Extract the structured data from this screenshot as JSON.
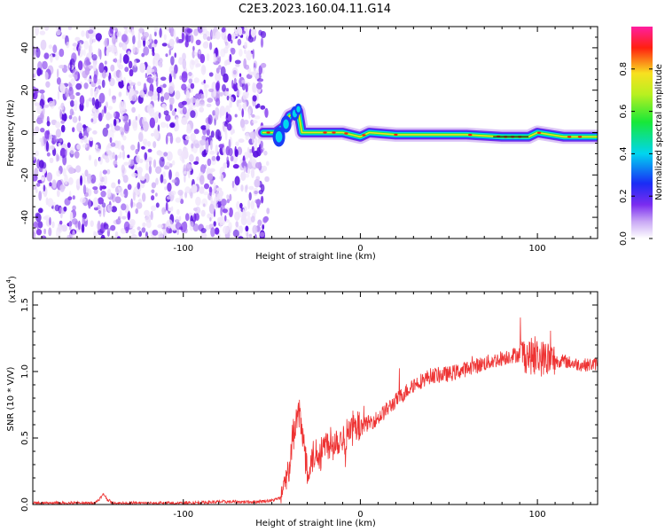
{
  "title": "C2E3.2023.160.04.11.G14",
  "colors": {
    "snr_line": "#ee3333",
    "axis": "#000000",
    "spectrogram_noise": "#7b2cf0",
    "track_core": "#ff2010"
  },
  "chart_data": [
    {
      "type": "heatmap",
      "xlabel": "Height of straight line (km)",
      "ylabel": "Frequency (Hz)",
      "xlim": [
        -185,
        134
      ],
      "ylim": [
        -50,
        50
      ],
      "x_ticks": [
        -100,
        0,
        100
      ],
      "y_ticks": [
        -40,
        -20,
        0,
        20,
        40
      ],
      "colorbar": {
        "label": "Normalized spectral amplitude",
        "range": [
          0.0,
          1.0
        ],
        "ticks": [
          0.0,
          0.2,
          0.4,
          0.6,
          0.8
        ],
        "tick_labels": [
          "0.0",
          "0.2",
          "0.4",
          "0.6",
          "0.8"
        ],
        "colormap": "rainbow (white-violet-blue-cyan-green-yellow-red-magenta)"
      },
      "noise_region_x": [
        -185,
        -55
      ],
      "track": {
        "x": [
          -55,
          -48,
          -43,
          -40,
          -35,
          -33,
          -30,
          -20,
          -10,
          0,
          5,
          20,
          40,
          60,
          80,
          95,
          100,
          115,
          134
        ],
        "y": [
          0,
          0,
          3,
          8,
          10,
          0,
          0,
          0,
          0,
          -2,
          0,
          -1,
          -1,
          -1,
          -2,
          -2,
          0,
          -2,
          -2
        ]
      }
    },
    {
      "type": "line",
      "xlabel": "Height of straight line (km)",
      "ylabel": "SNR (10 * V/V)",
      "y_multiplier": "(x10",
      "y_multiplier_exp": "4",
      "y_multiplier_close": ")",
      "xlim": [
        -185,
        134
      ],
      "ylim": [
        0,
        1.6
      ],
      "x_ticks": [
        -100,
        0,
        100
      ],
      "y_ticks": [
        0.0,
        0.5,
        1.0,
        1.5
      ],
      "y_tick_labels": [
        "0.0",
        "0.5",
        "1.0",
        "1.5"
      ],
      "x_tick_labels": [
        "-100",
        "0",
        "100"
      ],
      "series": [
        {
          "x": [
            -185,
            -170,
            -150,
            -146,
            -145,
            -143,
            -140,
            -120,
            -100,
            -80,
            -60,
            -50,
            -45,
            -42,
            -40,
            -38,
            -36,
            -35,
            -33,
            -30,
            -25,
            -20,
            -15,
            -10,
            -5,
            0,
            10,
            20,
            30,
            40,
            50,
            60,
            70,
            80,
            85,
            90,
            95,
            100,
            105,
            110,
            115,
            120,
            125,
            130,
            134
          ],
          "y": [
            0.01,
            0.01,
            0.01,
            0.06,
            0.08,
            0.04,
            0.01,
            0.01,
            0.01,
            0.02,
            0.02,
            0.03,
            0.05,
            0.15,
            0.3,
            0.5,
            0.62,
            0.7,
            0.55,
            0.28,
            0.38,
            0.45,
            0.48,
            0.5,
            0.55,
            0.58,
            0.65,
            0.78,
            0.9,
            0.97,
            0.98,
            1.02,
            1.06,
            1.1,
            1.12,
            1.13,
            1.12,
            1.1,
            1.1,
            1.08,
            1.08,
            1.06,
            1.05,
            1.05,
            1.06
          ]
        }
      ]
    }
  ]
}
